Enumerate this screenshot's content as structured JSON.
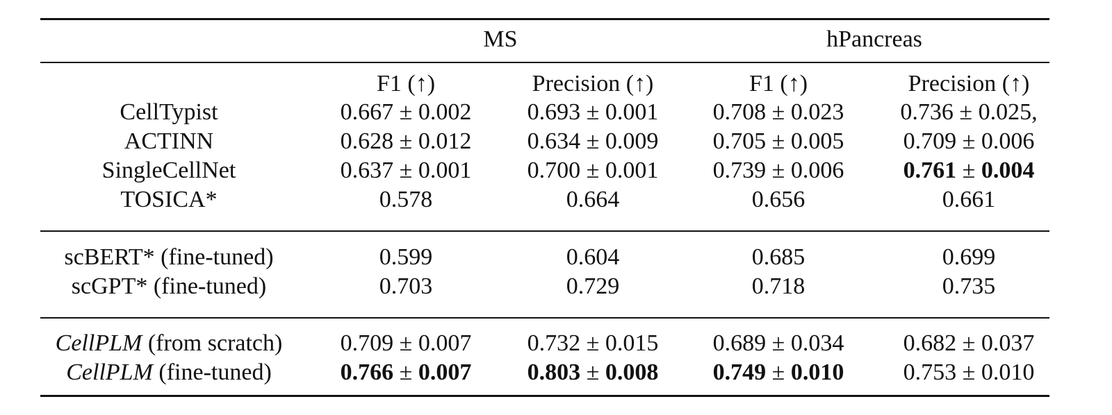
{
  "table": {
    "groups": [
      "MS",
      "hPancreas"
    ],
    "metrics": [
      "F1 (↑)",
      "Precision (↑)",
      "F1 (↑)",
      "Precision (↑)"
    ],
    "sections": [
      {
        "rows": [
          {
            "method": "CellTypist",
            "method_italic": "",
            "method_rest": "",
            "cells": [
              {
                "v": "0.667",
                "pm": "±",
                "e": "0.002",
                "bold": false
              },
              {
                "v": "0.693",
                "pm": "±",
                "e": "0.001",
                "bold": false
              },
              {
                "v": "0.708",
                "pm": "±",
                "e": "0.023",
                "bold": false
              },
              {
                "v": "0.736",
                "pm": "±",
                "e": "0.025,",
                "bold": false
              }
            ]
          },
          {
            "method": "ACTINN",
            "method_italic": "",
            "method_rest": "",
            "cells": [
              {
                "v": "0.628",
                "pm": "±",
                "e": "0.012",
                "bold": false
              },
              {
                "v": "0.634",
                "pm": "±",
                "e": "0.009",
                "bold": false
              },
              {
                "v": "0.705",
                "pm": "±",
                "e": "0.005",
                "bold": false
              },
              {
                "v": "0.709",
                "pm": "±",
                "e": "0.006",
                "bold": false
              }
            ]
          },
          {
            "method": "SingleCellNet",
            "method_italic": "",
            "method_rest": "",
            "cells": [
              {
                "v": "0.637",
                "pm": "±",
                "e": "0.001",
                "bold": false
              },
              {
                "v": "0.700",
                "pm": "±",
                "e": "0.001",
                "bold": false
              },
              {
                "v": "0.739",
                "pm": "±",
                "e": "0.006",
                "bold": false
              },
              {
                "v": "0.761",
                "pm": "±",
                "e": "0.004",
                "bold": true
              }
            ]
          },
          {
            "method": "TOSICA*",
            "method_italic": "",
            "method_rest": "",
            "cells": [
              {
                "v": "0.578",
                "pm": "",
                "e": "",
                "bold": false
              },
              {
                "v": "0.664",
                "pm": "",
                "e": "",
                "bold": false
              },
              {
                "v": "0.656",
                "pm": "",
                "e": "",
                "bold": false
              },
              {
                "v": "0.661",
                "pm": "",
                "e": "",
                "bold": false
              }
            ]
          }
        ]
      },
      {
        "rows": [
          {
            "method": "scBERT* (fine-tuned)",
            "method_italic": "",
            "method_rest": "",
            "cells": [
              {
                "v": "0.599",
                "pm": "",
                "e": "",
                "bold": false
              },
              {
                "v": "0.604",
                "pm": "",
                "e": "",
                "bold": false
              },
              {
                "v": "0.685",
                "pm": "",
                "e": "",
                "bold": false
              },
              {
                "v": "0.699",
                "pm": "",
                "e": "",
                "bold": false
              }
            ]
          },
          {
            "method": "scGPT* (fine-tuned)",
            "method_italic": "",
            "method_rest": "",
            "cells": [
              {
                "v": "0.703",
                "pm": "",
                "e": "",
                "bold": false
              },
              {
                "v": "0.729",
                "pm": "",
                "e": "",
                "bold": false
              },
              {
                "v": "0.718",
                "pm": "",
                "e": "",
                "bold": false
              },
              {
                "v": "0.735",
                "pm": "",
                "e": "",
                "bold": false
              }
            ]
          }
        ]
      },
      {
        "rows": [
          {
            "method": "",
            "method_italic": "CellPLM",
            "method_rest": " (from scratch)",
            "cells": [
              {
                "v": "0.709",
                "pm": "±",
                "e": "0.007",
                "bold": false
              },
              {
                "v": "0.732",
                "pm": "±",
                "e": "0.015",
                "bold": false
              },
              {
                "v": "0.689",
                "pm": "±",
                "e": "0.034",
                "bold": false
              },
              {
                "v": "0.682",
                "pm": "±",
                "e": "0.037",
                "bold": false
              }
            ]
          },
          {
            "method": "",
            "method_italic": "CellPLM",
            "method_rest": " (fine-tuned)",
            "cells": [
              {
                "v": "0.766",
                "pm": "±",
                "e": "0.007",
                "bold": true
              },
              {
                "v": "0.803",
                "pm": "±",
                "e": "0.008",
                "bold": true
              },
              {
                "v": "0.749",
                "pm": "±",
                "e": "0.010",
                "bold": true
              },
              {
                "v": "0.753",
                "pm": "±",
                "e": "0.010",
                "bold": false
              }
            ]
          }
        ]
      }
    ]
  }
}
